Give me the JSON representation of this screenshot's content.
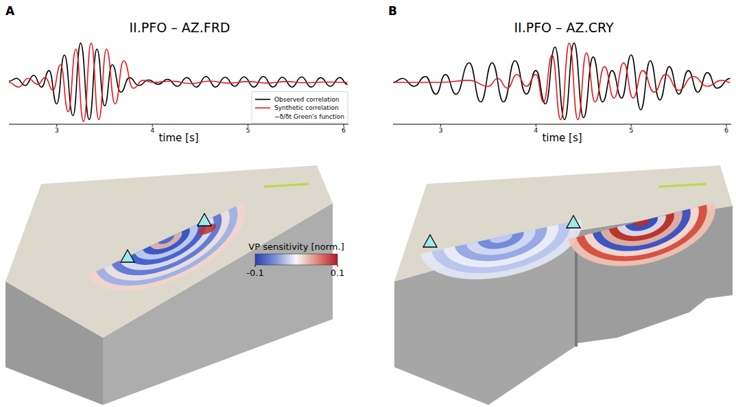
{
  "chart_data": [
    {
      "type": "line",
      "panel": "A",
      "title": "II.PFO – AZ.FRD",
      "x_label": "time [s]",
      "xlim": [
        2.5,
        6.05
      ],
      "xticks": [
        3,
        4,
        5,
        6
      ],
      "ylim": [
        -1.05,
        1.05
      ],
      "tick_labels": "x",
      "legend": "lower right",
      "series": [
        {
          "name": "Observed correlation",
          "color": "#000000",
          "x": [
            2.5,
            2.58,
            2.67,
            2.76,
            2.84,
            2.92,
            3.0,
            3.08,
            3.17,
            3.25,
            3.34,
            3.42,
            3.5,
            3.58,
            3.67,
            3.76,
            3.86,
            3.96,
            4.06,
            4.16,
            4.26,
            4.36,
            4.46,
            4.56,
            4.66,
            4.76,
            4.86,
            4.96,
            5.06,
            5.16,
            5.26,
            5.36,
            5.46,
            5.56,
            5.66,
            5.76,
            5.86,
            5.96,
            6.04
          ],
          "values": [
            0.03,
            0.1,
            -0.08,
            0.18,
            -0.12,
            0.3,
            -0.55,
            0.7,
            -0.85,
            1.0,
            -0.95,
            0.85,
            -0.6,
            0.45,
            -0.25,
            0.12,
            -0.08,
            0.06,
            -0.05,
            0.08,
            -0.1,
            0.12,
            -0.12,
            0.15,
            -0.12,
            0.13,
            -0.1,
            0.14,
            -0.12,
            0.15,
            -0.12,
            0.13,
            -0.12,
            0.14,
            -0.12,
            0.12,
            -0.1,
            0.12,
            -0.05
          ]
        },
        {
          "name": "Synthetic correlation",
          "color": "#e41a1c",
          "x": [
            2.5,
            2.6,
            2.7,
            2.8,
            2.88,
            2.96,
            3.04,
            3.12,
            3.2,
            3.28,
            3.36,
            3.44,
            3.52,
            3.61,
            3.7,
            3.8,
            3.9,
            4.0,
            4.2,
            4.4,
            4.6,
            4.8,
            5.0,
            5.2,
            5.4,
            5.6,
            5.8,
            6.04
          ],
          "values": [
            0.0,
            -0.12,
            0.1,
            -0.05,
            0.12,
            -0.2,
            0.45,
            -0.75,
            0.85,
            -1.0,
            1.0,
            -0.95,
            0.85,
            -0.55,
            0.55,
            -0.15,
            0.05,
            0.0,
            0.03,
            -0.03,
            0.03,
            -0.02,
            0.02,
            -0.02,
            0.02,
            -0.01,
            0.01,
            0.0
          ]
        },
        {
          "name": "−δ/δt Green's function",
          "color": "#ffffff",
          "x": [],
          "values": []
        }
      ]
    },
    {
      "type": "line",
      "panel": "B",
      "title": "II.PFO – AZ.CRY",
      "x_label": "time [s]",
      "xlim": [
        2.5,
        6.05
      ],
      "xticks": [
        3,
        4,
        5,
        6
      ],
      "ylim": [
        -1.05,
        1.05
      ],
      "tick_labels": "x",
      "legend": "none",
      "series": [
        {
          "name": "Observed correlation",
          "color": "#000000",
          "x": [
            2.5,
            2.6,
            2.72,
            2.84,
            2.95,
            3.05,
            3.16,
            3.3,
            3.42,
            3.54,
            3.66,
            3.78,
            3.9,
            4.0,
            4.1,
            4.2,
            4.3,
            4.4,
            4.5,
            4.6,
            4.7,
            4.8,
            4.9,
            5.0,
            5.1,
            5.2,
            5.3,
            5.4,
            5.5,
            5.6,
            5.7,
            5.8,
            5.9,
            6.04
          ],
          "values": [
            0.0,
            0.1,
            -0.1,
            0.15,
            -0.3,
            0.2,
            -0.3,
            0.5,
            -0.5,
            0.5,
            -0.5,
            0.55,
            -0.3,
            0.3,
            -0.55,
            0.9,
            -0.95,
            1.0,
            -0.9,
            0.65,
            -0.5,
            0.3,
            -0.4,
            0.7,
            -0.7,
            0.55,
            -0.45,
            0.4,
            -0.3,
            0.3,
            -0.25,
            0.25,
            -0.15,
            0.1
          ]
        },
        {
          "name": "Synthetic correlation",
          "color": "#e41a1c",
          "x": [
            2.5,
            3.0,
            3.3,
            3.5,
            3.6,
            3.7,
            3.8,
            3.9,
            4.0,
            4.08,
            4.17,
            4.26,
            4.35,
            4.44,
            4.53,
            4.62,
            4.72,
            4.82,
            4.92,
            5.02,
            5.12,
            5.24,
            5.36,
            5.5,
            5.65,
            5.8,
            5.95,
            6.04
          ],
          "values": [
            0.0,
            0.0,
            0.05,
            -0.1,
            0.1,
            -0.15,
            0.2,
            -0.1,
            0.2,
            -0.5,
            0.7,
            -0.95,
            1.0,
            -0.95,
            0.75,
            -0.5,
            0.4,
            -0.4,
            0.5,
            -0.4,
            0.3,
            -0.25,
            0.2,
            -0.2,
            0.15,
            -0.1,
            0.05,
            0.0
          ]
        }
      ]
    }
  ],
  "colorbar": {
    "label": "VP sensitivity [norm.]",
    "range": [
      -0.1,
      0.1
    ],
    "ticks": [
      -0.1,
      0.1
    ]
  }
}
